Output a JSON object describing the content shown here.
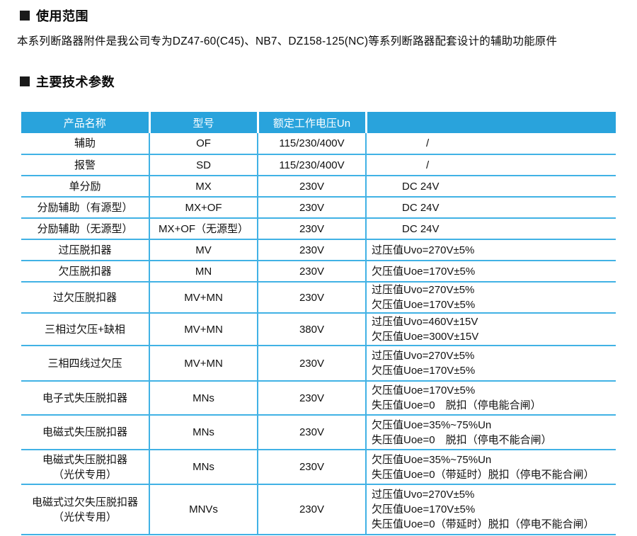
{
  "sections": {
    "usage_title": "使用范围",
    "usage_text": "本系列断路器附件是我公司专为DZ47-60(C45)、NB7、DZ158-125(NC)等系列断路器配套设计的辅助功能原件",
    "params_title": "主要技术参数"
  },
  "colors": {
    "header_bg": "#29a3dc",
    "grid_line": "#41b2e5",
    "header_text": "#ffffff",
    "body_text": "#111111"
  },
  "table": {
    "headers": [
      "产品名称",
      "型号",
      "额定工作电压Un",
      ""
    ],
    "rows": [
      {
        "name": "辅助",
        "model": "OF",
        "voltage": "115/230/400V",
        "note": "/"
      },
      {
        "name": "报警",
        "model": "SD",
        "voltage": "115/230/400V",
        "note": "/"
      },
      {
        "name": "单分励",
        "model": "MX",
        "voltage": "230V",
        "note": "DC 24V"
      },
      {
        "name": "分励辅助（有源型）",
        "model": "MX+OF",
        "voltage": "230V",
        "note": "DC 24V"
      },
      {
        "name": "分励辅助（无源型）",
        "model": "MX+OF（无源型）",
        "voltage": "230V",
        "note": "DC 24V"
      },
      {
        "name": "过压脱扣器",
        "model": "MV",
        "voltage": "230V",
        "note": "过压值Uvo=270V±5%"
      },
      {
        "name": "欠压脱扣器",
        "model": "MN",
        "voltage": "230V",
        "note": "欠压值Uoe=170V±5%"
      },
      {
        "name": "过欠压脱扣器",
        "model": "MV+MN",
        "voltage": "230V",
        "note": "过压值Uvo=270V±5%\n欠压值Uoe=170V±5%"
      },
      {
        "name": "三相过欠压+缺相",
        "model": "MV+MN",
        "voltage": "380V",
        "note": "过压值Uvo=460V±15V\n欠压值Uoe=300V±15V"
      },
      {
        "name": "三相四线过欠压",
        "model": "MV+MN",
        "voltage": "230V",
        "note": "过压值Uvo=270V±5%\n欠压值Uoe=170V±5%"
      },
      {
        "name": "电子式失压脱扣器",
        "model": "MNs",
        "voltage": "230V",
        "note": "欠压值Uoe=170V±5%\n失压值Uoe=0　脱扣（停电能合闸）"
      },
      {
        "name": "电磁式失压脱扣器",
        "model": "MNs",
        "voltage": "230V",
        "note": "欠压值Uoe=35%~75%Un\n失压值Uoe=0　脱扣（停电不能合闸）"
      },
      {
        "name": "电磁式失压脱扣器\n（光伏专用）",
        "model": "MNs",
        "voltage": "230V",
        "note": "欠压值Uoe=35%~75%Un\n失压值Uoe=0（带延时）脱扣（停电不能合闸）"
      },
      {
        "name": "电磁式过欠失压脱扣器\n（光伏专用）",
        "model": "MNVs",
        "voltage": "230V",
        "note": "过压值Uvo=270V±5%\n欠压值Uoe=170V±5%\n失压值Uoe=0（带延时）脱扣（停电不能合闸）"
      }
    ]
  }
}
